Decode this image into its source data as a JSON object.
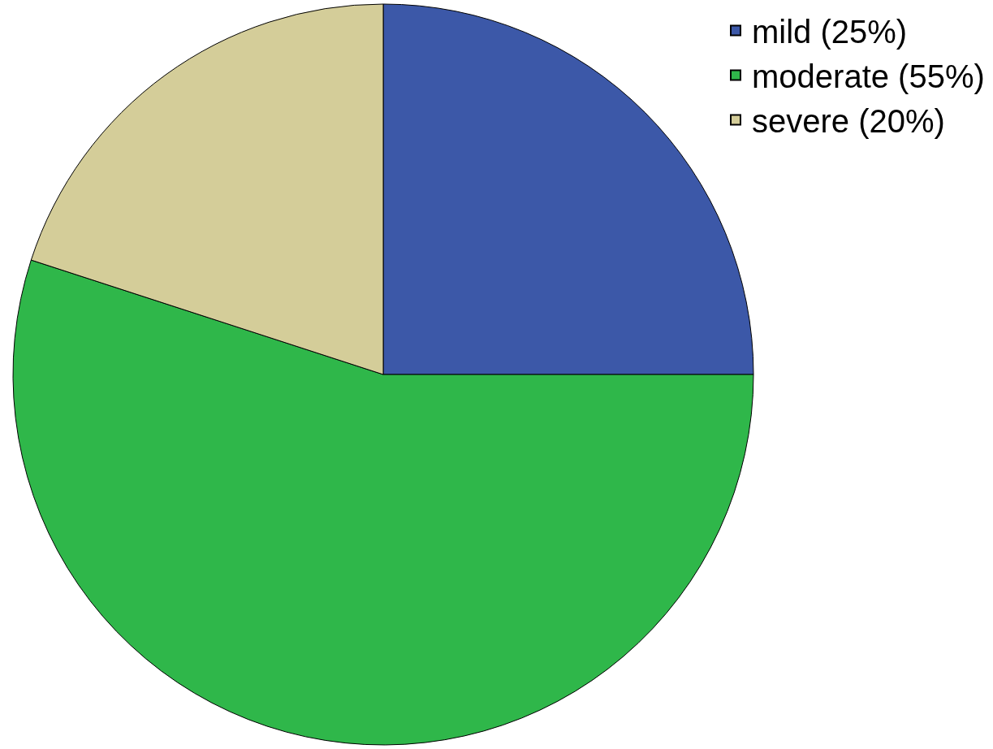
{
  "chart_data": {
    "type": "pie",
    "categories": [
      "mild (25%)",
      "moderate (55%)",
      "severe (20%)"
    ],
    "values": [
      25,
      55,
      20
    ],
    "colors": [
      "#3c58a8",
      "#2fb74a",
      "#d4cd99"
    ],
    "legend": "top right"
  }
}
